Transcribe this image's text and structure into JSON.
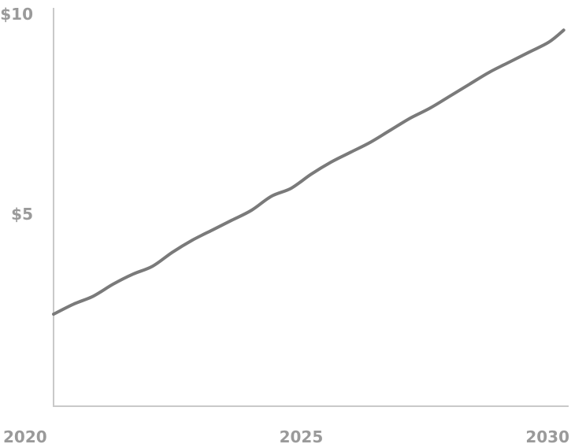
{
  "chart_data": {
    "type": "line",
    "title": "",
    "xlabel": "",
    "ylabel": "",
    "x_ticks": [
      {
        "value": 2020,
        "label": "2020"
      },
      {
        "value": 2025,
        "label": "2025"
      },
      {
        "value": 2030,
        "label": "2030"
      }
    ],
    "y_ticks": [
      {
        "value": 5,
        "label": "$5"
      },
      {
        "value": 10,
        "label": "$10"
      }
    ],
    "xlim": [
      2020,
      2030.4
    ],
    "ylim": [
      0.2,
      10
    ],
    "grid": false,
    "legend": "none",
    "series": [
      {
        "color": "#7a7a7a",
        "x": [
          2020.0,
          2020.4,
          2020.8,
          2021.2,
          2021.6,
          2022.0,
          2022.4,
          2022.8,
          2023.2,
          2023.6,
          2024.0,
          2024.4,
          2024.8,
          2025.2,
          2025.6,
          2026.0,
          2026.4,
          2026.8,
          2027.2,
          2027.6,
          2028.0,
          2028.4,
          2028.8,
          2029.2,
          2029.6,
          2030.0,
          2030.3
        ],
        "y": [
          2.5,
          2.75,
          2.95,
          3.25,
          3.5,
          3.7,
          4.05,
          4.35,
          4.6,
          4.85,
          5.1,
          5.45,
          5.65,
          6.0,
          6.3,
          6.55,
          6.8,
          7.1,
          7.4,
          7.65,
          7.95,
          8.25,
          8.55,
          8.8,
          9.05,
          9.3,
          9.6
        ]
      }
    ]
  }
}
